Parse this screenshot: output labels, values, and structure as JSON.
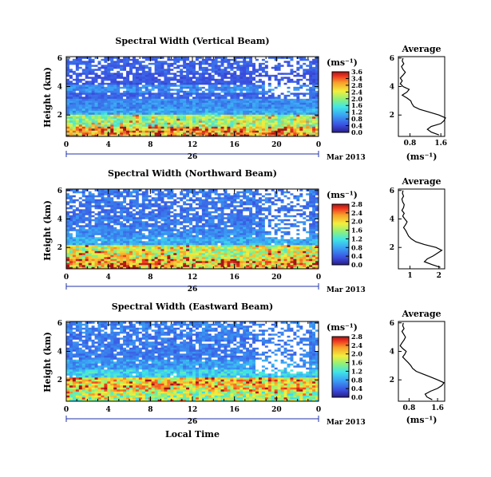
{
  "figure": {
    "x_tick_labels": [
      "0",
      "4",
      "8",
      "12",
      "16",
      "20",
      "0"
    ],
    "day_label": "26",
    "date_label": "Mar 2013",
    "xlabel": "Local Time",
    "ylabel": "Height (km)",
    "unit_label": "(ms⁻¹)",
    "avg_title": "Average"
  },
  "chart_data": [
    {
      "type": "heatmap",
      "title": "Spectral Width (Vertical Beam)",
      "xlabel": "Local Time",
      "ylabel": "Height (km)",
      "x_range_hours": [
        0,
        24
      ],
      "ylim_km": [
        0.5,
        6.1
      ],
      "y_ticks": [
        "2",
        "4",
        "6"
      ],
      "colorbar": {
        "label": "(ms⁻¹)",
        "ticks": [
          "3.6",
          "3.4",
          "2.8",
          "2.4",
          "2.0",
          "1.6",
          "1.2",
          "0.8",
          "0.4",
          "0.0"
        ],
        "range": [
          0,
          3.8
        ]
      },
      "profile_bands": [
        {
          "from_km": 0.5,
          "to_km": 1.2,
          "value": 2.9,
          "gaps": 0.0
        },
        {
          "from_km": 1.2,
          "to_km": 2.1,
          "value": 2.1,
          "gaps": 0.0
        },
        {
          "from_km": 2.1,
          "to_km": 2.5,
          "value": 1.1,
          "gaps": 0.0
        },
        {
          "from_km": 2.5,
          "to_km": 3.2,
          "value": 0.9,
          "gaps": 0.0
        },
        {
          "from_km": 3.2,
          "to_km": 3.6,
          "value": 0.6,
          "gaps": 0.06
        },
        {
          "from_km": 3.6,
          "to_km": 4.2,
          "value": 0.9,
          "gaps": 0.1
        },
        {
          "from_km": 4.2,
          "to_km": 5.0,
          "value": 0.5,
          "gaps": 0.18
        },
        {
          "from_km": 5.0,
          "to_km": 6.1,
          "value": 0.6,
          "gaps": 0.25
        }
      ],
      "white_gap_region": {
        "from_hour": 19,
        "to_hour": 23,
        "min_km": 3.2
      },
      "average": {
        "x_ticks": [
          "0.8",
          "1.6"
        ],
        "xlim": [
          0.5,
          1.7
        ],
        "ylim_km": [
          0.5,
          6.1
        ],
        "y_ticks": [
          "2",
          "4",
          "6"
        ],
        "xlabel": "(ms⁻¹)",
        "height_km": [
          0.6,
          0.8,
          1.0,
          1.2,
          1.4,
          1.6,
          1.8,
          2.0,
          2.2,
          2.4,
          2.6,
          2.8,
          3.0,
          3.2,
          3.4,
          3.6,
          3.8,
          4.0,
          4.2,
          4.4,
          4.6,
          4.8,
          5.0,
          5.2,
          5.4,
          5.6,
          5.8,
          6.0
        ],
        "value": [
          1.55,
          1.35,
          1.25,
          1.35,
          1.6,
          1.68,
          1.72,
          1.55,
          1.3,
          1.05,
          0.9,
          0.85,
          0.82,
          0.72,
          0.6,
          0.72,
          0.78,
          0.62,
          0.55,
          0.6,
          0.55,
          0.62,
          0.68,
          0.62,
          0.58,
          0.64,
          0.6,
          0.62
        ]
      }
    },
    {
      "type": "heatmap",
      "title": "Spectral Width (Northward Beam)",
      "xlabel": "Local Time",
      "ylabel": "Height (km)",
      "x_range_hours": [
        0,
        24
      ],
      "ylim_km": [
        0.5,
        6.1
      ],
      "y_ticks": [
        "2",
        "4",
        "6"
      ],
      "colorbar": {
        "label": "(ms⁻¹)",
        "ticks": [
          "2.8",
          "2.4",
          "2.0",
          "1.6",
          "1.2",
          "0.8",
          "0.4",
          "0.0"
        ],
        "range": [
          0,
          3.0
        ]
      },
      "profile_bands": [
        {
          "from_km": 0.5,
          "to_km": 1.2,
          "value": 2.3,
          "gaps": 0.0
        },
        {
          "from_km": 1.2,
          "to_km": 2.2,
          "value": 1.9,
          "gaps": 0.0
        },
        {
          "from_km": 2.2,
          "to_km": 2.8,
          "value": 0.9,
          "gaps": 0.03
        },
        {
          "from_km": 2.8,
          "to_km": 3.5,
          "value": 0.7,
          "gaps": 0.08
        },
        {
          "from_km": 3.5,
          "to_km": 4.3,
          "value": 0.6,
          "gaps": 0.15
        },
        {
          "from_km": 4.3,
          "to_km": 5.2,
          "value": 0.55,
          "gaps": 0.22
        },
        {
          "from_km": 5.2,
          "to_km": 6.1,
          "value": 0.6,
          "gaps": 0.3
        }
      ],
      "white_gap_region": {
        "from_hour": 19,
        "to_hour": 23,
        "min_km": 2.6
      },
      "average": {
        "x_ticks": [
          "1",
          "2"
        ],
        "xlim": [
          0.6,
          2.2
        ],
        "ylim_km": [
          0.5,
          6.1
        ],
        "y_ticks": [
          "2",
          "4",
          "6"
        ],
        "xlabel": "",
        "height_km": [
          0.6,
          0.8,
          1.0,
          1.2,
          1.4,
          1.6,
          1.8,
          2.0,
          2.2,
          2.4,
          2.6,
          2.8,
          3.0,
          3.2,
          3.4,
          3.6,
          3.8,
          4.0,
          4.2,
          4.4,
          4.6,
          4.8,
          5.0,
          5.2,
          5.4,
          5.6,
          5.8,
          6.0
        ],
        "value": [
          2.05,
          1.75,
          1.5,
          1.6,
          1.8,
          1.95,
          2.1,
          1.9,
          1.5,
          1.2,
          1.05,
          0.95,
          0.9,
          0.85,
          0.78,
          0.85,
          0.9,
          0.82,
          0.75,
          0.8,
          0.72,
          0.78,
          0.8,
          0.75,
          0.72,
          0.78,
          0.74,
          0.76
        ]
      }
    },
    {
      "type": "heatmap",
      "title": "Spectral Width (Eastward Beam)",
      "xlabel": "Local Time",
      "ylabel": "Height (km)",
      "x_range_hours": [
        0,
        24
      ],
      "ylim_km": [
        0.5,
        6.1
      ],
      "y_ticks": [
        "2",
        "4",
        "6"
      ],
      "colorbar": {
        "label": "(ms⁻¹)",
        "ticks": [
          "2.8",
          "2.4",
          "2.0",
          "1.6",
          "1.2",
          "0.8",
          "0.4",
          "0.0"
        ],
        "range": [
          0,
          3.0
        ]
      },
      "profile_bands": [
        {
          "from_km": 0.5,
          "to_km": 1.2,
          "value": 1.7,
          "gaps": 0.0
        },
        {
          "from_km": 1.2,
          "to_km": 2.2,
          "value": 2.1,
          "gaps": 0.0
        },
        {
          "from_km": 2.2,
          "to_km": 2.8,
          "value": 1.1,
          "gaps": 0.02
        },
        {
          "from_km": 2.8,
          "to_km": 3.5,
          "value": 0.8,
          "gaps": 0.05
        },
        {
          "from_km": 3.5,
          "to_km": 4.3,
          "value": 0.6,
          "gaps": 0.12
        },
        {
          "from_km": 4.3,
          "to_km": 5.2,
          "value": 0.6,
          "gaps": 0.18
        },
        {
          "from_km": 5.2,
          "to_km": 6.1,
          "value": 0.65,
          "gaps": 0.22
        }
      ],
      "white_gap_region": {
        "from_hour": 18,
        "to_hour": 23,
        "min_km": 2.4
      },
      "average": {
        "x_ticks": [
          "0.8",
          "1.6"
        ],
        "xlim": [
          0.5,
          1.8
        ],
        "ylim_km": [
          0.5,
          6.1
        ],
        "y_ticks": [
          "2",
          "4",
          "6"
        ],
        "xlabel": "(ms⁻¹)",
        "height_km": [
          0.6,
          0.8,
          1.0,
          1.2,
          1.4,
          1.6,
          1.8,
          2.0,
          2.2,
          2.4,
          2.6,
          2.8,
          3.0,
          3.2,
          3.4,
          3.6,
          3.8,
          4.0,
          4.2,
          4.4,
          4.6,
          4.8,
          5.0,
          5.2,
          5.4,
          5.6,
          5.8,
          6.0
        ],
        "value": [
          1.45,
          1.3,
          1.25,
          1.4,
          1.6,
          1.72,
          1.78,
          1.6,
          1.4,
          1.2,
          1.0,
          0.9,
          0.85,
          0.78,
          0.7,
          0.62,
          0.68,
          0.72,
          0.62,
          0.55,
          0.6,
          0.66,
          0.7,
          0.65,
          0.6,
          0.66,
          0.62,
          0.64
        ]
      }
    }
  ]
}
